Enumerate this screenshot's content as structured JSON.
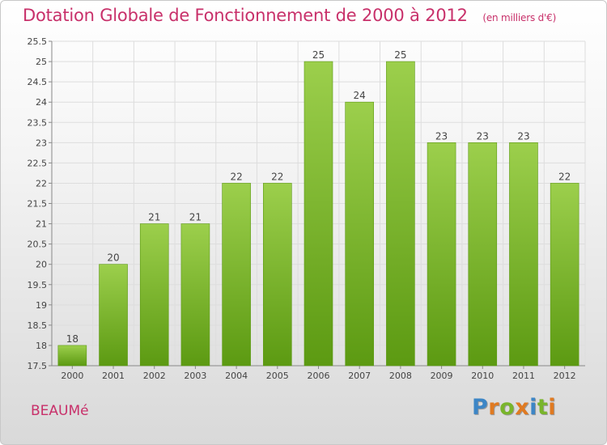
{
  "title": "Dotation Globale de Fonctionnement de 2000 à 2012",
  "subtitle": "(en milliers d'€)",
  "commune": "BEAUMé",
  "logo": {
    "letters": [
      "P",
      "r",
      "o",
      "x",
      "i",
      "t",
      "i"
    ],
    "colors": [
      "#3d86c6",
      "#e07a21",
      "#79b52b",
      "#e07a21",
      "#3d86c6",
      "#79b52b",
      "#e07a21"
    ]
  },
  "chart_data": {
    "type": "bar",
    "categories": [
      "2000",
      "2001",
      "2002",
      "2003",
      "2004",
      "2005",
      "2006",
      "2007",
      "2008",
      "2009",
      "2010",
      "2011",
      "2012"
    ],
    "values": [
      18,
      20,
      21,
      21,
      22,
      22,
      25,
      24,
      25,
      23,
      23,
      23,
      22
    ],
    "value_labels": [
      "18",
      "20",
      "21",
      "21",
      "22",
      "22",
      "25",
      "24",
      "25",
      "23",
      "23",
      "23",
      "22"
    ],
    "ylim": [
      17.5,
      25.5
    ],
    "yticks": [
      17.5,
      18,
      18.5,
      19,
      19.5,
      20,
      20.5,
      21,
      21.5,
      22,
      22.5,
      23,
      23.5,
      24,
      24.5,
      25,
      25.5
    ],
    "ytick_labels": [
      "17.5",
      "18",
      "18.5",
      "19",
      "19.5",
      "20",
      "20.5",
      "21",
      "21.5",
      "22",
      "22.5",
      "23",
      "23.5",
      "24",
      "24.5",
      "25",
      "25.5"
    ],
    "grid": true,
    "bar_color": "#7ab52c",
    "xlabel": "",
    "ylabel": ""
  }
}
